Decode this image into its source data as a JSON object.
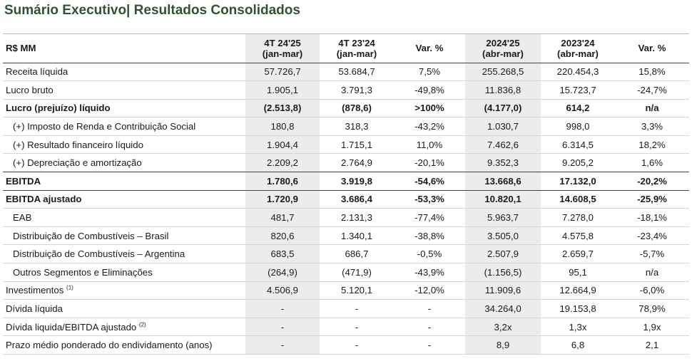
{
  "title": "Sumário Executivo| Resultados Consolidados",
  "headers": {
    "label": "R$ MM",
    "c1_line1": "4T 24'25",
    "c1_line2": "(jan-mar)",
    "c2_line1": "4T 23'24",
    "c2_line2": "(jan-mar)",
    "c3": "Var. %",
    "c4_line1": "2024'25",
    "c4_line2": "(abr-mar)",
    "c5_line1": "2023'24",
    "c5_line2": "(abr-mar)",
    "c6": "Var. %"
  },
  "rows": [
    {
      "label": "Receita líquida",
      "sup": "",
      "v": [
        "57.726,7",
        "53.684,7",
        "7,5%",
        "255.268,5",
        "220.454,3",
        "15,8%"
      ]
    },
    {
      "label": "Lucro bruto",
      "sup": "",
      "v": [
        "1.905,1",
        "3.791,3",
        "-49,8%",
        "11.836,8",
        "15.723,7",
        "-24,7%"
      ]
    },
    {
      "label": "Lucro (prejuízo) líquido",
      "sup": "",
      "v": [
        "(2.513,8)",
        "(878,6)",
        ">100%",
        "(4.177,0)",
        "614,2",
        "n/a"
      ]
    },
    {
      "label": "(+) Imposto de Renda e Contribuição Social",
      "sup": "",
      "v": [
        "180,8",
        "318,3",
        "-43,2%",
        "1.030,7",
        "998,0",
        "3,3%"
      ]
    },
    {
      "label": "(+) Resultado financeiro líquido",
      "sup": "",
      "v": [
        "1.904,4",
        "1.715,1",
        "11,0%",
        "7.462,6",
        "6.314,5",
        "18,2%"
      ]
    },
    {
      "label": "(+) Depreciação e amortização",
      "sup": "",
      "v": [
        "2.209,2",
        "2.764,9",
        "-20,1%",
        "9.352,3",
        "9.205,2",
        "1,6%"
      ]
    },
    {
      "label": "EBITDA",
      "sup": "",
      "v": [
        "1.780,6",
        "3.919,8",
        "-54,6%",
        "13.668,6",
        "17.132,0",
        "-20,2%"
      ]
    },
    {
      "label": "EBITDA ajustado",
      "sup": "",
      "v": [
        "1.720,9",
        "3.686,4",
        "-53,3%",
        "10.820,1",
        "14.608,5",
        "-25,9%"
      ]
    },
    {
      "label": "EAB",
      "sup": "",
      "v": [
        "481,7",
        "2.131,3",
        "-77,4%",
        "5.963,7",
        "7.278,0",
        "-18,1%"
      ]
    },
    {
      "label": "Distribuição de Combustíveis – Brasil",
      "sup": "",
      "v": [
        "820,6",
        "1.340,1",
        "-38,8%",
        "3.505,0",
        "4.575,8",
        "-23,4%"
      ]
    },
    {
      "label": "Distribuição de Combustíveis – Argentina",
      "sup": "",
      "v": [
        "683,5",
        "686,7",
        "-0,5%",
        "2.507,9",
        "2.659,7",
        "-5,7%"
      ]
    },
    {
      "label": "Outros Segmentos e Eliminações",
      "sup": "",
      "v": [
        "(264,9)",
        "(471,9)",
        "-43,9%",
        "(1.156,5)",
        "95,1",
        "n/a"
      ]
    },
    {
      "label": "Investimentos",
      "sup": "(1)",
      "v": [
        "4.506,9",
        "5.120,1",
        "-12,0%",
        "11.909,6",
        "12.664,9",
        "-6,0%"
      ]
    },
    {
      "label": "Dívida líquida",
      "sup": "",
      "v": [
        "-",
        "-",
        "-",
        "34.264,0",
        "19.153,8",
        "78,9%"
      ]
    },
    {
      "label": "Dívida liquida/EBITDA ajustado",
      "sup": "(2)",
      "v": [
        "-",
        "-",
        "-",
        "3,2x",
        "1,3x",
        "1,9x"
      ]
    },
    {
      "label": "Prazo médio ponderado do endividamento (anos)",
      "sup": "",
      "v": [
        "-",
        "-",
        "-",
        "8,9",
        "6,8",
        "2,1"
      ]
    }
  ]
}
